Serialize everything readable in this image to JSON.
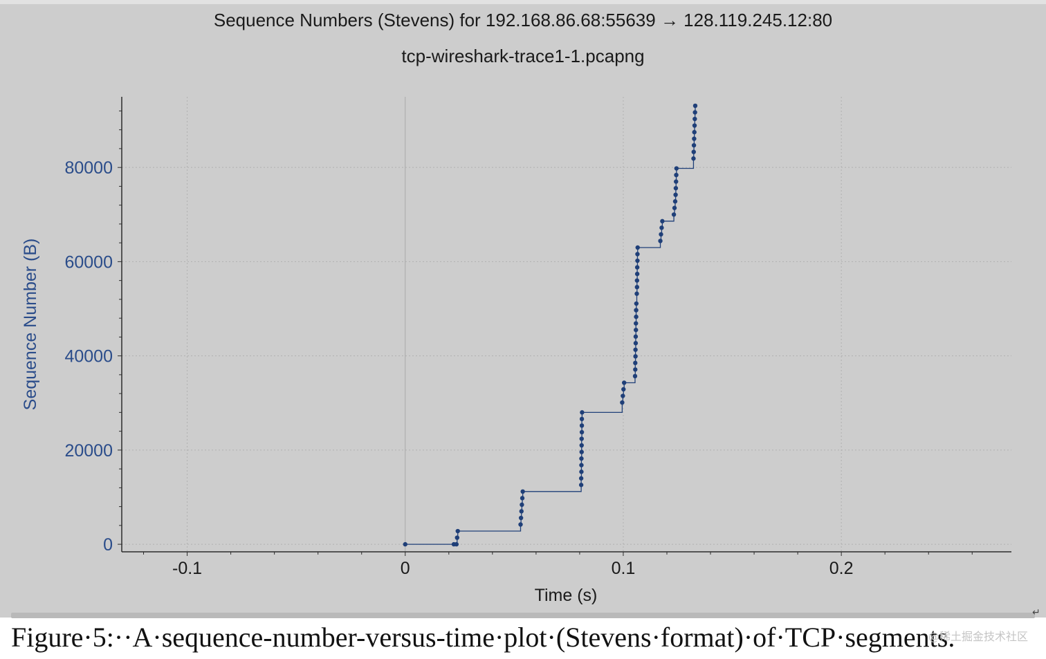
{
  "chart_data": {
    "type": "scatter",
    "title": "Sequence Numbers (Stevens) for 192.168.86.68:55639 → 128.119.245.12:80",
    "subtitle": "tcp-wireshark-trace1-1.pcapng",
    "xlabel": "Time (s)",
    "ylabel": "Sequence Number (B)",
    "xlim": [
      -0.13,
      0.278
    ],
    "ylim": [
      -1600,
      95000
    ],
    "xticks": [
      -0.1,
      0,
      0.1,
      0.2
    ],
    "xtick_labels": [
      "-0.1",
      "0",
      "0.1",
      "0.2"
    ],
    "yticks": [
      0,
      20000,
      40000,
      60000,
      80000
    ],
    "ytick_labels": [
      "0",
      "20000",
      "40000",
      "60000",
      "80000"
    ],
    "grid": true,
    "connector": "step",
    "point_color": "#1f3f78",
    "axis_label_color": "#2a4c8a",
    "series": [
      {
        "points": [
          [
            0.0,
            0
          ],
          [
            0.0223,
            0
          ],
          [
            0.0235,
            0
          ],
          [
            0.0238,
            1400
          ],
          [
            0.0241,
            2800
          ],
          [
            0.0529,
            4200
          ],
          [
            0.0531,
            5600
          ],
          [
            0.0533,
            7000
          ],
          [
            0.0535,
            8400
          ],
          [
            0.0537,
            9800
          ],
          [
            0.0539,
            11200
          ],
          [
            0.0807,
            12600
          ],
          [
            0.0807,
            14000
          ],
          [
            0.0808,
            15400
          ],
          [
            0.0808,
            16800
          ],
          [
            0.0808,
            18200
          ],
          [
            0.0809,
            19600
          ],
          [
            0.0809,
            21000
          ],
          [
            0.0809,
            22400
          ],
          [
            0.081,
            23800
          ],
          [
            0.081,
            25200
          ],
          [
            0.081,
            26600
          ],
          [
            0.0811,
            28000
          ],
          [
            0.0995,
            30100
          ],
          [
            0.0998,
            31500
          ],
          [
            0.1001,
            32900
          ],
          [
            0.1004,
            34300
          ],
          [
            0.1054,
            35700
          ],
          [
            0.1055,
            37100
          ],
          [
            0.1055,
            38500
          ],
          [
            0.1056,
            39900
          ],
          [
            0.1056,
            41300
          ],
          [
            0.1057,
            42700
          ],
          [
            0.1057,
            44100
          ],
          [
            0.1058,
            45500
          ],
          [
            0.1058,
            46900
          ],
          [
            0.1059,
            48300
          ],
          [
            0.1059,
            49700
          ],
          [
            0.106,
            51100
          ],
          [
            0.1062,
            53200
          ],
          [
            0.1063,
            54600
          ],
          [
            0.1063,
            56000
          ],
          [
            0.1064,
            57400
          ],
          [
            0.1064,
            58800
          ],
          [
            0.1065,
            60200
          ],
          [
            0.1065,
            61600
          ],
          [
            0.1066,
            63000
          ],
          [
            0.117,
            64400
          ],
          [
            0.1173,
            65800
          ],
          [
            0.1176,
            67200
          ],
          [
            0.1179,
            68600
          ],
          [
            0.1232,
            70000
          ],
          [
            0.1235,
            71400
          ],
          [
            0.1238,
            72800
          ],
          [
            0.124,
            74200
          ],
          [
            0.1241,
            75600
          ],
          [
            0.1242,
            77000
          ],
          [
            0.1243,
            78400
          ],
          [
            0.1244,
            79800
          ],
          [
            0.1322,
            81900
          ],
          [
            0.1323,
            83300
          ],
          [
            0.1324,
            84700
          ],
          [
            0.1325,
            86100
          ],
          [
            0.1326,
            87500
          ],
          [
            0.1327,
            88900
          ],
          [
            0.1328,
            90300
          ],
          [
            0.1329,
            91700
          ],
          [
            0.133,
            93100
          ]
        ]
      }
    ]
  },
  "caption": "Figure·5:··A·sequence-number-versus-time·plot·(Stevens·format)·of·TCP·segments.",
  "watermark": "@稀土掘金技术社区",
  "return_glyph": "↵"
}
